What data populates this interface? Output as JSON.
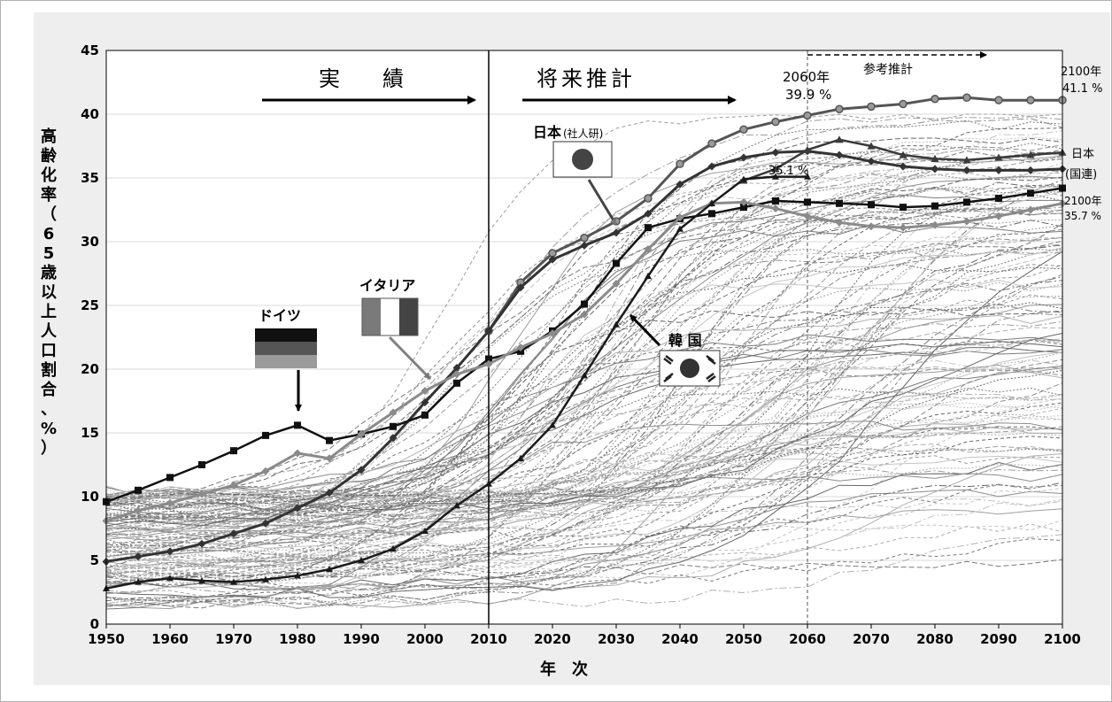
{
  "chart_data": {
    "type": "line",
    "xlabel": "年　次",
    "ylabel": "高齢化率（65歳以上人口割合、%）",
    "ylim": [
      0,
      45
    ],
    "xlim": [
      1950,
      2100
    ],
    "x_ticks": [
      "1950",
      "1960",
      "1970",
      "1980",
      "1990",
      "2000",
      "2010",
      "2020",
      "2030",
      "2040",
      "2050",
      "2060",
      "2070",
      "2080",
      "2090",
      "2100"
    ],
    "y_ticks": [
      "0",
      "5",
      "10",
      "15",
      "20",
      "25",
      "30",
      "35",
      "40",
      "45"
    ],
    "grid": true,
    "period_labels": {
      "actual": "実　　績",
      "projection": "将来推計",
      "reference": "参考推計"
    },
    "annotations": {
      "y2060_year": "2060年",
      "y2060_value": "39.9 %",
      "y2100_year_top": "2100年",
      "y2100_value_top": "41.1 %",
      "y2060_un": "35.1 %",
      "japan_un": "日本",
      "japan_un_sub": "(国連)",
      "y2100_year_bottom": "2100年",
      "y2100_value_bottom": "35.7 %"
    },
    "country_labels": {
      "japan_ipss": "日本",
      "japan_ipss_sub": "(社人研)",
      "korea": "韓 国",
      "italy": "イタリア",
      "germany": "ドイツ"
    },
    "colors": {
      "japan_ipss": "#555555",
      "japan_un": "#333333",
      "germany": "#111111",
      "italy": "#8a8a8a",
      "korea": "#1a1a1a",
      "background_lines": "#9a9a9a"
    },
    "series": [
      {
        "key": "japan_ipss",
        "x": [
          2010,
          2015,
          2020,
          2025,
          2030,
          2035,
          2040,
          2045,
          2050,
          2055,
          2060,
          2065,
          2070,
          2075,
          2080,
          2085,
          2090,
          2095,
          2100
        ],
        "values": [
          23.0,
          26.8,
          29.1,
          30.3,
          31.6,
          33.4,
          36.1,
          37.7,
          38.8,
          39.4,
          39.9,
          40.4,
          40.6,
          40.8,
          41.2,
          41.3,
          41.1,
          41.1,
          41.1
        ]
      },
      {
        "key": "japan_un",
        "x": [
          1950,
          1955,
          1960,
          1965,
          1970,
          1975,
          1980,
          1985,
          1990,
          1995,
          2000,
          2005,
          2010,
          2015,
          2020,
          2025,
          2030,
          2035,
          2040,
          2045,
          2050,
          2055,
          2060,
          2065,
          2070,
          2075,
          2080,
          2085,
          2090,
          2095,
          2100
        ],
        "values": [
          4.9,
          5.3,
          5.7,
          6.3,
          7.1,
          7.9,
          9.1,
          10.3,
          12.1,
          14.6,
          17.4,
          20.1,
          23.0,
          26.4,
          28.6,
          29.7,
          30.7,
          32.2,
          34.5,
          35.9,
          36.6,
          37.0,
          37.1,
          36.8,
          36.3,
          35.9,
          35.7,
          35.6,
          35.6,
          35.6,
          35.7
        ]
      },
      {
        "key": "japan_un_high",
        "x": [
          2050,
          2055,
          2060,
          2065,
          2070,
          2075,
          2080,
          2085,
          2090,
          2095,
          2100
        ],
        "values": [
          34.8,
          35.7,
          37.2,
          38.0,
          37.5,
          36.8,
          36.5,
          36.4,
          36.6,
          36.8,
          37.0
        ]
      },
      {
        "key": "germany",
        "x": [
          1950,
          1955,
          1960,
          1965,
          1970,
          1975,
          1980,
          1985,
          1990,
          1995,
          2000,
          2005,
          2010,
          2015,
          2020,
          2025,
          2030,
          2035,
          2040,
          2045,
          2050,
          2055,
          2060,
          2065,
          2070,
          2075,
          2080,
          2085,
          2090,
          2095,
          2100
        ],
        "values": [
          9.6,
          10.5,
          11.5,
          12.5,
          13.6,
          14.8,
          15.6,
          14.4,
          14.9,
          15.5,
          16.4,
          18.9,
          20.8,
          21.4,
          23.0,
          25.1,
          28.3,
          31.1,
          31.8,
          32.2,
          32.7,
          33.2,
          33.1,
          33.0,
          32.9,
          32.7,
          32.8,
          33.1,
          33.4,
          33.8,
          34.2
        ]
      },
      {
        "key": "italy",
        "x": [
          1950,
          1955,
          1960,
          1965,
          1970,
          1975,
          1980,
          1985,
          1990,
          1995,
          2000,
          2005,
          2010,
          2015,
          2020,
          2025,
          2030,
          2035,
          2040,
          2045,
          2050,
          2055,
          2060,
          2065,
          2070,
          2075,
          2080,
          2085,
          2090,
          2095,
          2100
        ],
        "values": [
          8.1,
          8.9,
          9.5,
          10.2,
          10.9,
          12.0,
          13.4,
          13.0,
          14.9,
          16.6,
          18.3,
          19.6,
          20.4,
          21.7,
          22.8,
          24.3,
          26.7,
          29.4,
          31.9,
          33.0,
          33.1,
          32.6,
          32.0,
          31.5,
          31.2,
          31.1,
          31.3,
          31.6,
          32.0,
          32.5,
          33.0
        ]
      },
      {
        "key": "korea",
        "x": [
          1950,
          1955,
          1960,
          1965,
          1970,
          1975,
          1980,
          1985,
          1990,
          1995,
          2000,
          2005,
          2010,
          2015,
          2020,
          2025,
          2030,
          2035,
          2040,
          2045,
          2050,
          2055,
          2060
        ],
        "values": [
          2.8,
          3.3,
          3.6,
          3.4,
          3.3,
          3.5,
          3.8,
          4.3,
          5.0,
          5.9,
          7.3,
          9.3,
          11.0,
          13.0,
          15.6,
          19.5,
          23.5,
          27.3,
          31.0,
          33.0,
          34.9,
          35.1,
          35.1
        ]
      }
    ]
  }
}
